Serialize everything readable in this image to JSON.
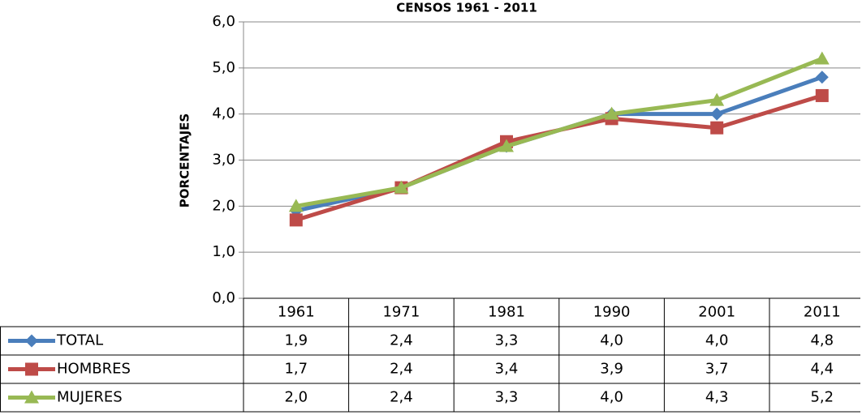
{
  "chart_data": {
    "type": "line",
    "title": "CENSOS 1961 - 2011",
    "y_label": "PORCENTAJES",
    "categories": [
      "1961",
      "1971",
      "1981",
      "1990",
      "2001",
      "2011"
    ],
    "series": [
      {
        "name": "TOTAL",
        "color": "#4a7ebb",
        "marker": "diamond",
        "values": [
          1.9,
          2.4,
          3.3,
          4.0,
          4.0,
          4.8
        ],
        "value_labels": [
          "1,9",
          "2,4",
          "3,3",
          "4,0",
          "4,0",
          "4,8"
        ]
      },
      {
        "name": "HOMBRES",
        "color": "#be4b48",
        "marker": "square",
        "values": [
          1.7,
          2.4,
          3.4,
          3.9,
          3.7,
          4.4
        ],
        "value_labels": [
          "1,7",
          "2,4",
          "3,4",
          "3,9",
          "3,7",
          "4,4"
        ]
      },
      {
        "name": "MUJERES",
        "color": "#98b954",
        "marker": "triangle",
        "values": [
          2.0,
          2.4,
          3.3,
          4.0,
          4.3,
          5.2
        ],
        "value_labels": [
          "2,0",
          "2,4",
          "3,3",
          "4,0",
          "4,3",
          "5,2"
        ]
      }
    ],
    "ylim": [
      0,
      6
    ],
    "yticks": [
      {
        "value": 0,
        "label": "0,0"
      },
      {
        "value": 1,
        "label": "1,0"
      },
      {
        "value": 2,
        "label": "2,0"
      },
      {
        "value": 3,
        "label": "3,0"
      },
      {
        "value": 4,
        "label": "4,0"
      },
      {
        "value": 5,
        "label": "5,0"
      },
      {
        "value": 6,
        "label": "6,0"
      }
    ],
    "grid": true,
    "data_table": true
  }
}
